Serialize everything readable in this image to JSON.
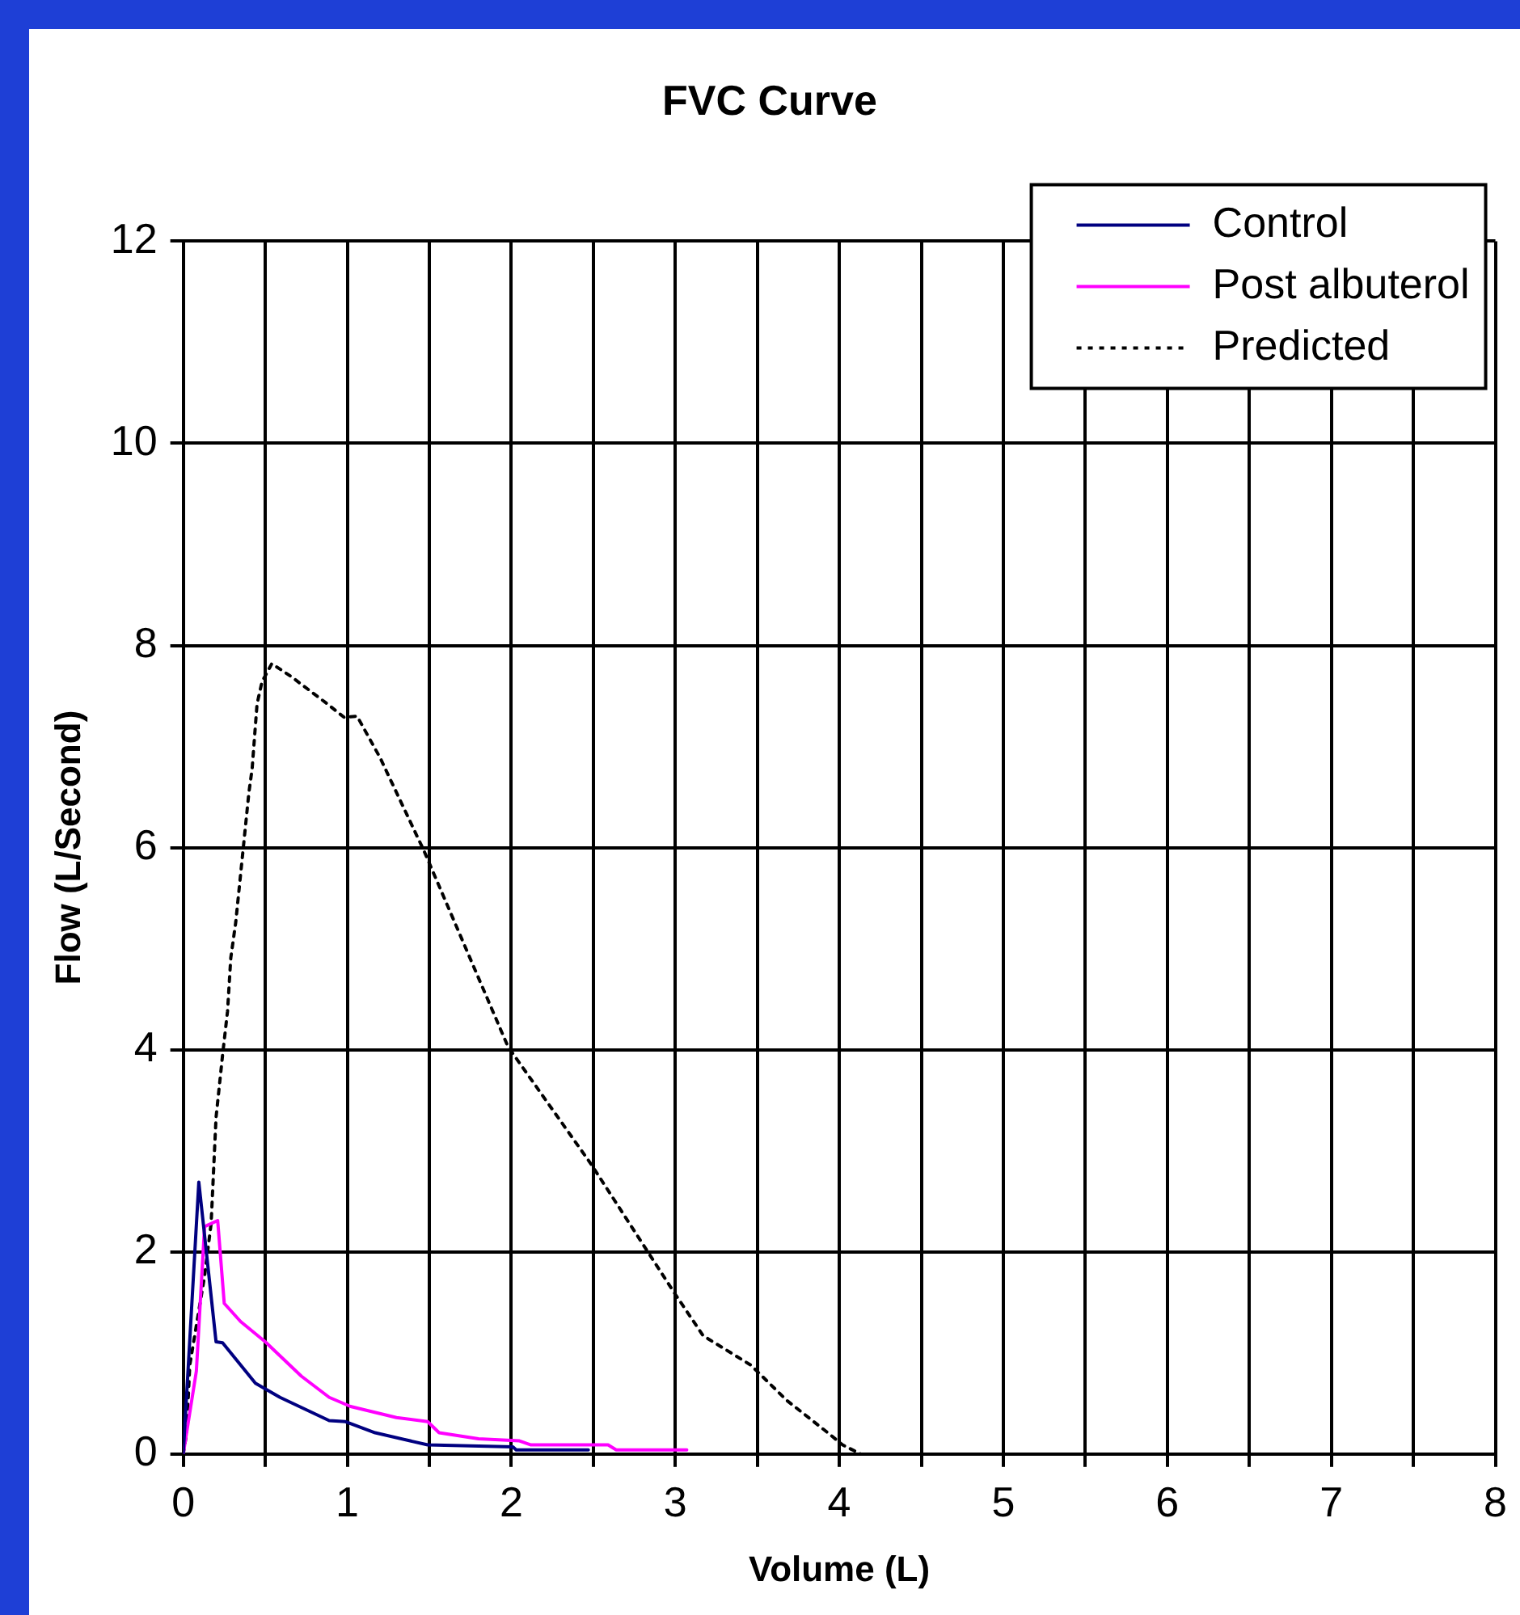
{
  "chart_data": {
    "type": "line",
    "title": "FVC Curve",
    "xlabel": "Volume (L)",
    "ylabel": "Flow (L/Second)",
    "xlim": [
      0,
      8
    ],
    "ylim": [
      0,
      12
    ],
    "xticks": [
      0,
      {
        "value": 0.5,
        "label": null
      },
      1,
      {
        "value": 1.5,
        "label": null
      },
      2,
      {
        "value": 2.5,
        "label": null
      },
      3,
      {
        "value": 3.5,
        "label": null
      },
      4,
      {
        "value": 4.5,
        "label": null
      },
      5,
      {
        "value": 5.5,
        "label": null
      },
      6,
      {
        "value": 6.5,
        "label": null
      },
      7,
      {
        "value": 7.5,
        "label": null
      },
      8
    ],
    "yticks": [
      0,
      2,
      4,
      6,
      8,
      10,
      12
    ],
    "grid": true,
    "legend": "top right",
    "marker": "none",
    "series": [
      {
        "name": "Control",
        "color": "#000080",
        "line_style": "solid",
        "x": [
          0,
          0.095,
          0.2,
          0.24,
          0.44,
          0.59,
          0.89,
          0.99,
          1.17,
          1.49,
          2.01,
          2.03,
          2.47
        ],
        "values": [
          0,
          2.69,
          1.11,
          1.1,
          0.7,
          0.56,
          0.33,
          0.32,
          0.21,
          0.09,
          0.07,
          0.04,
          0.04
        ]
      },
      {
        "name": "Post albuterol",
        "color": "#ff00ff",
        "line_style": "solid",
        "x": [
          0,
          0.08,
          0.13,
          0.21,
          0.25,
          0.35,
          0.5,
          0.72,
          0.89,
          1.02,
          1.3,
          1.49,
          1.56,
          1.8,
          2.05,
          2.12,
          2.59,
          2.64,
          3.07
        ],
        "values": [
          0,
          0.82,
          2.25,
          2.31,
          1.49,
          1.31,
          1.11,
          0.77,
          0.56,
          0.47,
          0.36,
          0.32,
          0.21,
          0.15,
          0.13,
          0.09,
          0.09,
          0.04,
          0.04
        ]
      },
      {
        "name": "Predicted",
        "color": "#000000",
        "line_style": "dotted",
        "x": [
          0,
          0.02,
          0.04,
          0.13,
          0.17,
          0.2,
          0.24,
          0.27,
          0.29,
          0.32,
          0.36,
          0.4,
          0.42,
          0.45,
          0.48,
          0.54,
          0.66,
          0.88,
          0.98,
          1.06,
          1.2,
          1.47,
          1.98,
          2.49,
          3.0,
          3.17,
          3.46,
          3.68,
          3.93,
          4.02,
          4.13
        ],
        "values": [
          0,
          0.2,
          0.88,
          1.76,
          2.28,
          3.33,
          3.95,
          4.38,
          4.91,
          5.26,
          5.9,
          6.54,
          6.78,
          7.42,
          7.64,
          7.82,
          7.69,
          7.42,
          7.29,
          7.3,
          6.89,
          5.96,
          4.03,
          2.86,
          1.58,
          1.17,
          0.88,
          0.53,
          0.21,
          0.09,
          0
        ]
      }
    ]
  }
}
